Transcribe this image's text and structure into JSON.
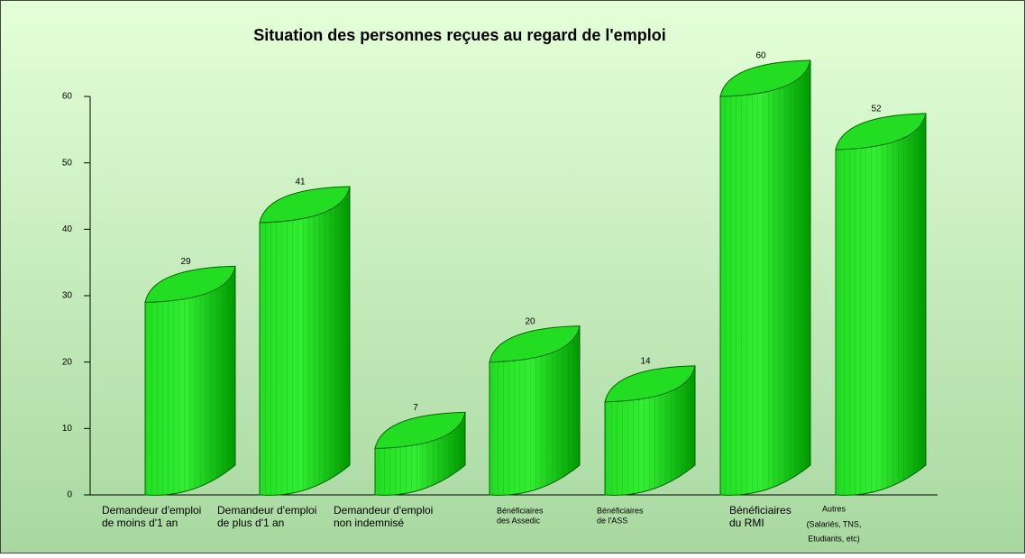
{
  "chart_data": {
    "type": "bar3d",
    "title": "Situation des personnes reçues au regard de l'emploi",
    "categories": [
      [
        "Demandeur d'emploi",
        "de moins d'1 an"
      ],
      [
        "Demandeur d'emploi",
        "de plus d'1 an"
      ],
      [
        "Demandeur d'emploi",
        "non indemnisé"
      ],
      [
        "Bénéficiaires",
        "des Assedic"
      ],
      [
        "Bénéficiaires",
        "de l'ASS"
      ],
      [
        "Bénéficiaires",
        "du RMI"
      ],
      [
        "Autres",
        "(Salariés, TNS,",
        "Etudiants, etc)"
      ]
    ],
    "values": [
      29,
      41,
      7,
      20,
      14,
      60,
      52
    ],
    "color": "#11cc11",
    "ylim": [
      0,
      60
    ],
    "yticks": [
      0,
      10,
      20,
      30,
      40,
      50,
      60
    ]
  }
}
